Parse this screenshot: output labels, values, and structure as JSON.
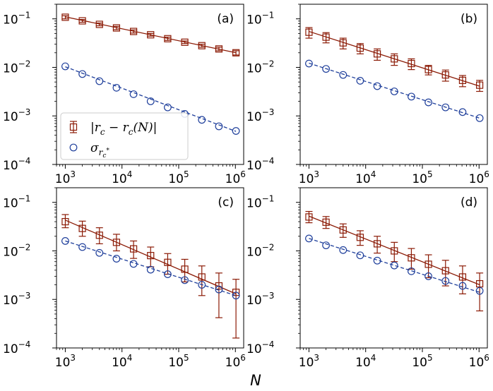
{
  "colors": {
    "diff": "#8b1a05",
    "sigma": "#1f3f9b",
    "frame": "#000000"
  },
  "x_ticks": [
    {
      "base": "10",
      "exp": "3",
      "value": 1000
    },
    {
      "base": "10",
      "exp": "4",
      "value": 10000
    },
    {
      "base": "10",
      "exp": "5",
      "value": 100000
    },
    {
      "base": "10",
      "exp": "6",
      "value": 1000000
    }
  ],
  "y_ticks": [
    {
      "base": "10",
      "exp": "−1",
      "value": 0.1
    },
    {
      "base": "10",
      "exp": "−2",
      "value": 0.01
    },
    {
      "base": "10",
      "exp": "−3",
      "value": 0.001
    },
    {
      "base": "10",
      "exp": "−4",
      "value": 0.0001
    }
  ],
  "legend": {
    "diff_label": "|r_c − r_c(N)|",
    "sigma_label": "σ_{r_c*}",
    "diff_main": "|r",
    "diff_sub1": "c",
    "diff_mid": " − r",
    "diff_sub2": "c",
    "diff_end": "(N)|",
    "sigma_main": "σ",
    "sigma_sub": "r",
    "sigma_subsub": "c",
    "sigma_sup": "*"
  },
  "chart_data": [
    {
      "type": "scatter",
      "panel": "(a)",
      "xscale": "log",
      "yscale": "log",
      "xlim": [
        700,
        1400000
      ],
      "ylim": [
        0.0001,
        0.2
      ],
      "x": [
        1000,
        2000,
        4000,
        8000,
        16000,
        32000,
        64000,
        128000,
        256000,
        512000,
        1024000
      ],
      "series": [
        {
          "name": "|r_c − r_c(N)|",
          "marker": "square",
          "fit": "solid",
          "values": [
            0.108,
            0.091,
            0.077,
            0.065,
            0.055,
            0.047,
            0.039,
            0.033,
            0.028,
            0.024,
            0.02
          ],
          "errors": [
            0.008,
            0.006,
            0.005,
            0.005,
            0.004,
            0.003,
            0.003,
            0.002,
            0.002,
            0.002,
            0.002
          ],
          "fit_values": [
            0.11,
            0.02
          ]
        },
        {
          "name": "σ_{r_c*}",
          "marker": "circle",
          "fit": "dashed",
          "values": [
            0.0105,
            0.0073,
            0.0052,
            0.0038,
            0.0028,
            0.002,
            0.0015,
            0.0011,
            0.00083,
            0.00061,
            0.00049
          ],
          "fit_values": [
            0.0103,
            0.00048
          ]
        }
      ],
      "legend_placement": "lower-left"
    },
    {
      "type": "scatter",
      "panel": "(b)",
      "xscale": "log",
      "yscale": "log",
      "xlim": [
        700,
        1400000
      ],
      "ylim": [
        0.0001,
        0.2
      ],
      "x": [
        1000,
        2000,
        4000,
        8000,
        16000,
        32000,
        64000,
        128000,
        256000,
        512000,
        1024000
      ],
      "series": [
        {
          "name": "|r_c − r_c(N)|",
          "marker": "square",
          "fit": "solid",
          "values": [
            0.053,
            0.042,
            0.032,
            0.025,
            0.019,
            0.015,
            0.012,
            0.009,
            0.007,
            0.0054,
            0.0043
          ],
          "errors": [
            0.013,
            0.01,
            0.008,
            0.006,
            0.005,
            0.004,
            0.003,
            0.002,
            0.0018,
            0.0014,
            0.0011
          ],
          "fit_values": [
            0.055,
            0.0041
          ]
        },
        {
          "name": "σ_{r_c*}",
          "marker": "circle",
          "fit": "dashed",
          "values": [
            0.012,
            0.0093,
            0.007,
            0.0053,
            0.0041,
            0.0032,
            0.0025,
            0.0019,
            0.0015,
            0.0012,
            0.0009
          ],
          "fit_values": [
            0.0122,
            0.0009
          ]
        }
      ]
    },
    {
      "type": "scatter",
      "panel": "(c)",
      "xscale": "log",
      "yscale": "log",
      "xlim": [
        700,
        1400000
      ],
      "ylim": [
        0.0001,
        0.2
      ],
      "x": [
        1000,
        2000,
        4000,
        8000,
        16000,
        32000,
        64000,
        128000,
        256000,
        512000,
        1024000
      ],
      "series": [
        {
          "name": "|r_c − r_c(N)|",
          "marker": "square",
          "fit": "solid",
          "values": [
            0.04,
            0.029,
            0.021,
            0.015,
            0.011,
            0.008,
            0.0058,
            0.0042,
            0.0029,
            0.0019,
            0.0014
          ],
          "err_low": [
            0.01,
            0.009,
            0.007,
            0.005,
            0.004,
            0.0033,
            0.0025,
            0.0019,
            0.0017,
            0.00148,
            0.00124
          ],
          "err_high": [
            0.016,
            0.012,
            0.009,
            0.007,
            0.005,
            0.004,
            0.003,
            0.0025,
            0.002,
            0.0016,
            0.0012
          ],
          "fit_values": [
            0.043,
            0.0013
          ]
        },
        {
          "name": "σ_{r_c*}",
          "marker": "circle",
          "fit": "dashed",
          "values": [
            0.016,
            0.012,
            0.0091,
            0.0069,
            0.0054,
            0.0041,
            0.0033,
            0.0025,
            0.002,
            0.0016,
            0.0012
          ],
          "fit_values": [
            0.016,
            0.0012
          ]
        }
      ]
    },
    {
      "type": "scatter",
      "panel": "(d)",
      "xscale": "log",
      "yscale": "log",
      "xlim": [
        700,
        1400000
      ],
      "ylim": [
        0.0001,
        0.2
      ],
      "x": [
        1000,
        2000,
        4000,
        8000,
        16000,
        32000,
        64000,
        128000,
        256000,
        512000,
        1024000
      ],
      "series": [
        {
          "name": "|r_c − r_c(N)|",
          "marker": "square",
          "fit": "solid",
          "values": [
            0.05,
            0.039,
            0.027,
            0.019,
            0.014,
            0.01,
            0.0072,
            0.0053,
            0.0039,
            0.0029,
            0.0021
          ],
          "err_low": [
            0.012,
            0.01,
            0.008,
            0.006,
            0.005,
            0.004,
            0.003,
            0.0025,
            0.002,
            0.0016,
            0.00152
          ],
          "err_high": [
            0.015,
            0.012,
            0.009,
            0.007,
            0.006,
            0.005,
            0.004,
            0.003,
            0.0025,
            0.002,
            0.0014
          ],
          "fit_values": [
            0.052,
            0.002
          ]
        },
        {
          "name": "σ_{r_c*}",
          "marker": "circle",
          "fit": "dashed",
          "values": [
            0.018,
            0.013,
            0.0104,
            0.0081,
            0.0063,
            0.005,
            0.0038,
            0.003,
            0.0024,
            0.0019,
            0.0015
          ],
          "fit_values": [
            0.018,
            0.0014
          ]
        }
      ]
    }
  ],
  "xlabel": "N"
}
